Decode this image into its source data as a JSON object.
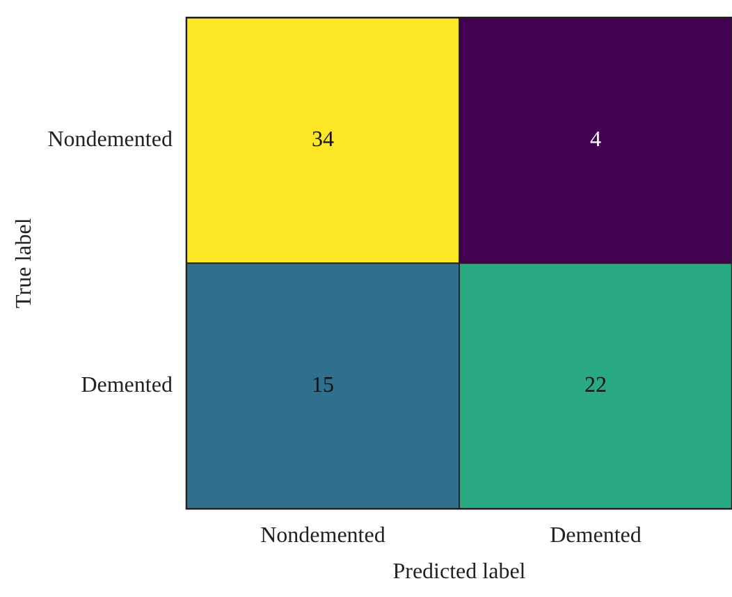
{
  "chart_data": {
    "type": "heatmap",
    "xlabel": "Predicted label",
    "ylabel": "True label",
    "categories": [
      "Nondemented",
      "Demented"
    ],
    "y_categories": [
      "Nondemented",
      "Demented"
    ],
    "cells": [
      [
        34,
        4
      ],
      [
        15,
        22
      ]
    ],
    "data_labels": true
  }
}
